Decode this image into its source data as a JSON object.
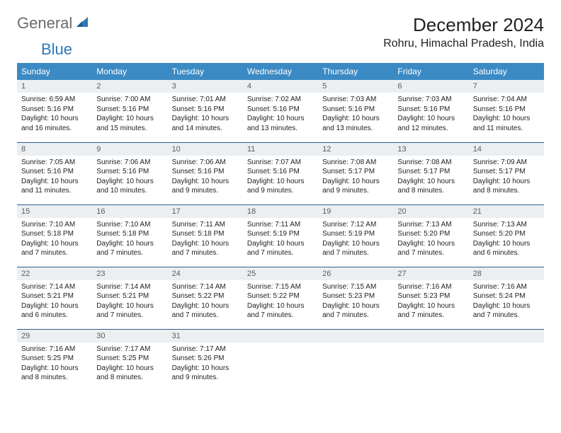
{
  "logo": {
    "word1": "General",
    "word2": "Blue"
  },
  "title": "December 2024",
  "location": "Rohru, Himachal Pradesh, India",
  "colors": {
    "header_bg": "#3b8ac4",
    "header_fg": "#ffffff",
    "row_divider": "#2d5f8a",
    "daynum_bg": "#eceff1",
    "daynum_fg": "#5a5a5a",
    "text": "#222222",
    "logo_gray": "#6b6b6b",
    "logo_blue": "#2d79b8"
  },
  "day_headers": [
    "Sunday",
    "Monday",
    "Tuesday",
    "Wednesday",
    "Thursday",
    "Friday",
    "Saturday"
  ],
  "weeks": [
    [
      {
        "n": "1",
        "sr": "6:59 AM",
        "ss": "5:16 PM",
        "dl": "10 hours and 16 minutes."
      },
      {
        "n": "2",
        "sr": "7:00 AM",
        "ss": "5:16 PM",
        "dl": "10 hours and 15 minutes."
      },
      {
        "n": "3",
        "sr": "7:01 AM",
        "ss": "5:16 PM",
        "dl": "10 hours and 14 minutes."
      },
      {
        "n": "4",
        "sr": "7:02 AM",
        "ss": "5:16 PM",
        "dl": "10 hours and 13 minutes."
      },
      {
        "n": "5",
        "sr": "7:03 AM",
        "ss": "5:16 PM",
        "dl": "10 hours and 13 minutes."
      },
      {
        "n": "6",
        "sr": "7:03 AM",
        "ss": "5:16 PM",
        "dl": "10 hours and 12 minutes."
      },
      {
        "n": "7",
        "sr": "7:04 AM",
        "ss": "5:16 PM",
        "dl": "10 hours and 11 minutes."
      }
    ],
    [
      {
        "n": "8",
        "sr": "7:05 AM",
        "ss": "5:16 PM",
        "dl": "10 hours and 11 minutes."
      },
      {
        "n": "9",
        "sr": "7:06 AM",
        "ss": "5:16 PM",
        "dl": "10 hours and 10 minutes."
      },
      {
        "n": "10",
        "sr": "7:06 AM",
        "ss": "5:16 PM",
        "dl": "10 hours and 9 minutes."
      },
      {
        "n": "11",
        "sr": "7:07 AM",
        "ss": "5:16 PM",
        "dl": "10 hours and 9 minutes."
      },
      {
        "n": "12",
        "sr": "7:08 AM",
        "ss": "5:17 PM",
        "dl": "10 hours and 9 minutes."
      },
      {
        "n": "13",
        "sr": "7:08 AM",
        "ss": "5:17 PM",
        "dl": "10 hours and 8 minutes."
      },
      {
        "n": "14",
        "sr": "7:09 AM",
        "ss": "5:17 PM",
        "dl": "10 hours and 8 minutes."
      }
    ],
    [
      {
        "n": "15",
        "sr": "7:10 AM",
        "ss": "5:18 PM",
        "dl": "10 hours and 7 minutes."
      },
      {
        "n": "16",
        "sr": "7:10 AM",
        "ss": "5:18 PM",
        "dl": "10 hours and 7 minutes."
      },
      {
        "n": "17",
        "sr": "7:11 AM",
        "ss": "5:18 PM",
        "dl": "10 hours and 7 minutes."
      },
      {
        "n": "18",
        "sr": "7:11 AM",
        "ss": "5:19 PM",
        "dl": "10 hours and 7 minutes."
      },
      {
        "n": "19",
        "sr": "7:12 AM",
        "ss": "5:19 PM",
        "dl": "10 hours and 7 minutes."
      },
      {
        "n": "20",
        "sr": "7:13 AM",
        "ss": "5:20 PM",
        "dl": "10 hours and 7 minutes."
      },
      {
        "n": "21",
        "sr": "7:13 AM",
        "ss": "5:20 PM",
        "dl": "10 hours and 6 minutes."
      }
    ],
    [
      {
        "n": "22",
        "sr": "7:14 AM",
        "ss": "5:21 PM",
        "dl": "10 hours and 6 minutes."
      },
      {
        "n": "23",
        "sr": "7:14 AM",
        "ss": "5:21 PM",
        "dl": "10 hours and 7 minutes."
      },
      {
        "n": "24",
        "sr": "7:14 AM",
        "ss": "5:22 PM",
        "dl": "10 hours and 7 minutes."
      },
      {
        "n": "25",
        "sr": "7:15 AM",
        "ss": "5:22 PM",
        "dl": "10 hours and 7 minutes."
      },
      {
        "n": "26",
        "sr": "7:15 AM",
        "ss": "5:23 PM",
        "dl": "10 hours and 7 minutes."
      },
      {
        "n": "27",
        "sr": "7:16 AM",
        "ss": "5:23 PM",
        "dl": "10 hours and 7 minutes."
      },
      {
        "n": "28",
        "sr": "7:16 AM",
        "ss": "5:24 PM",
        "dl": "10 hours and 7 minutes."
      }
    ],
    [
      {
        "n": "29",
        "sr": "7:16 AM",
        "ss": "5:25 PM",
        "dl": "10 hours and 8 minutes."
      },
      {
        "n": "30",
        "sr": "7:17 AM",
        "ss": "5:25 PM",
        "dl": "10 hours and 8 minutes."
      },
      {
        "n": "31",
        "sr": "7:17 AM",
        "ss": "5:26 PM",
        "dl": "10 hours and 9 minutes."
      },
      null,
      null,
      null,
      null
    ]
  ],
  "labels": {
    "sunrise": "Sunrise:",
    "sunset": "Sunset:",
    "daylight": "Daylight:"
  }
}
